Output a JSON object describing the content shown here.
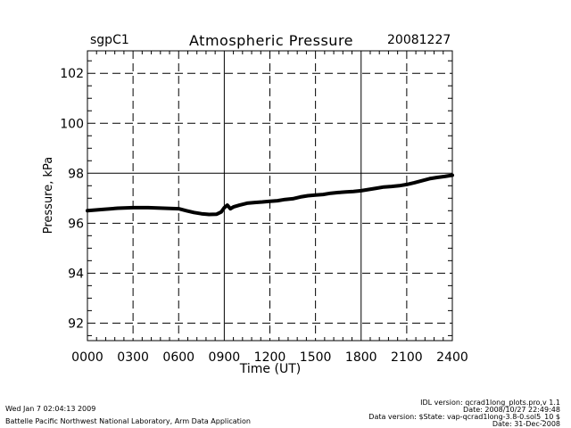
{
  "header": {
    "site": "sgpC1",
    "title": "Atmospheric Pressure",
    "date": "20081227"
  },
  "footer": {
    "left_line1": "Wed Jan  7 02:04:13 2009",
    "left_line2": "Battelle Pacific Northwest National Laboratory, Arm Data Application",
    "right_line1": "IDL version: qcrad1long_plots.pro,v 1.1",
    "right_line2": "Date: 2008/10/27 22:49:48",
    "right_line3": "Data version: $State: vap-qcrad1long-3.8-0.sol5_10 $",
    "right_line4": "Date: 31-Dec-2008"
  },
  "colors": {
    "line": "#000000",
    "background": "#ffffff"
  },
  "chart_data": {
    "type": "line",
    "title": "Atmospheric Pressure",
    "xlabel": "Time (UT)",
    "ylabel": "Pressure, kPa",
    "xlim": [
      0,
      2400
    ],
    "ylim": [
      91.3,
      102.9
    ],
    "x_ticks": [
      0,
      300,
      600,
      900,
      1200,
      1500,
      1800,
      2100,
      2400
    ],
    "x_tick_labels": [
      "0000",
      "0300",
      "0600",
      "0900",
      "1200",
      "1500",
      "1800",
      "2100",
      "2400"
    ],
    "y_ticks": [
      92,
      94,
      96,
      98,
      100,
      102
    ],
    "y_tick_labels": [
      "92",
      "94",
      "96",
      "98",
      "100",
      "102"
    ],
    "grid": true,
    "series": [
      {
        "x": [
          0,
          100,
          200,
          300,
          400,
          500,
          600,
          650,
          700,
          750,
          800,
          850,
          880,
          900,
          920,
          940,
          960,
          1000,
          1050,
          1100,
          1150,
          1200,
          1250,
          1300,
          1350,
          1400,
          1450,
          1500,
          1550,
          1600,
          1650,
          1700,
          1750,
          1800,
          1850,
          1900,
          1950,
          2000,
          2050,
          2100,
          2150,
          2200,
          2250,
          2300,
          2350,
          2400
        ],
        "values": [
          96.5,
          96.55,
          96.6,
          96.62,
          96.62,
          96.6,
          96.58,
          96.5,
          96.43,
          96.38,
          96.35,
          96.36,
          96.45,
          96.62,
          96.72,
          96.58,
          96.65,
          96.72,
          96.8,
          96.83,
          96.85,
          96.88,
          96.9,
          96.95,
          96.98,
          97.05,
          97.1,
          97.13,
          97.15,
          97.2,
          97.23,
          97.25,
          97.27,
          97.3,
          97.35,
          97.4,
          97.45,
          97.47,
          97.5,
          97.55,
          97.62,
          97.7,
          97.78,
          97.83,
          97.87,
          97.92
        ]
      }
    ]
  }
}
